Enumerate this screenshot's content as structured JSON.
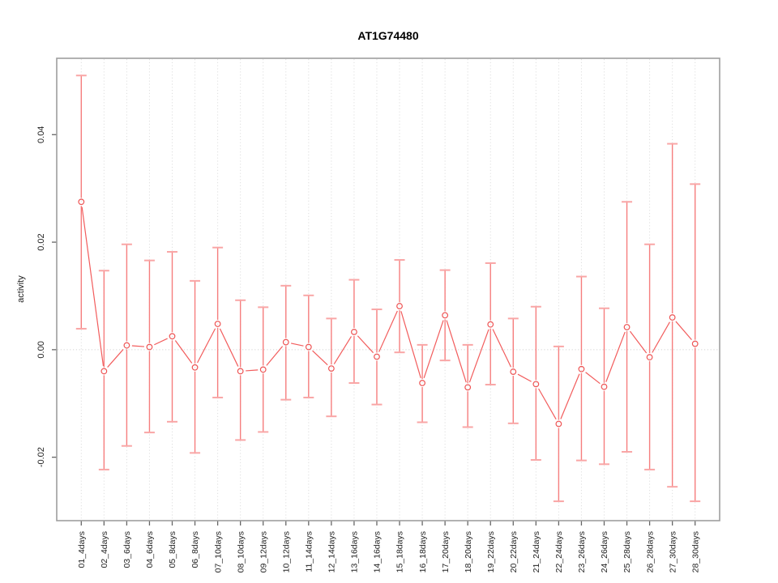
{
  "title": "AT1G74480",
  "chart_data": {
    "type": "scatter",
    "title": "AT1G74480",
    "ylabel": "activity",
    "legend": "none",
    "marker": "open-circle",
    "error_bars": true,
    "grid": "vertical-dotted-per-category, dotted-zero-line, no-horizontal-gridlines",
    "categories": [
      "01_4days",
      "02_4days",
      "03_6days",
      "04_6days",
      "05_8days",
      "06_8days",
      "07_10days",
      "08_10days",
      "09_12days",
      "10_12days",
      "11_14days",
      "12_14days",
      "13_16days",
      "14_16days",
      "15_18days",
      "16_18days",
      "17_20days",
      "18_20days",
      "19_22days",
      "20_22days",
      "21_24days",
      "22_24days",
      "23_26days",
      "24_26days",
      "25_28days",
      "26_28days",
      "27_30days",
      "28_30days"
    ],
    "series": [
      {
        "name": "activity",
        "values": [
          0.0275,
          -0.004,
          0.0008,
          0.0005,
          0.0025,
          -0.0033,
          0.0048,
          -0.004,
          -0.0037,
          0.0014,
          0.0005,
          -0.0035,
          0.0033,
          -0.0013,
          0.0081,
          -0.0062,
          0.0064,
          -0.007,
          0.0047,
          -0.0041,
          -0.0064,
          -0.0138,
          -0.0036,
          -0.0069,
          0.0042,
          -0.0014,
          0.006,
          0.0011
        ],
        "lower": [
          0.0039,
          -0.0223,
          -0.0179,
          -0.0154,
          -0.0134,
          -0.0192,
          -0.0089,
          -0.0168,
          -0.0153,
          -0.0093,
          -0.0089,
          -0.0124,
          -0.0062,
          -0.0102,
          -0.0005,
          -0.0135,
          -0.002,
          -0.0144,
          -0.0065,
          -0.0137,
          -0.0205,
          -0.0282,
          -0.0206,
          -0.0213,
          -0.019,
          -0.0223,
          -0.0255,
          -0.0282
        ],
        "upper": [
          0.051,
          0.0147,
          0.0196,
          0.0166,
          0.0182,
          0.0128,
          0.019,
          0.0092,
          0.0079,
          0.0119,
          0.0101,
          0.0058,
          0.013,
          0.0075,
          0.0167,
          0.0009,
          0.0148,
          0.0009,
          0.0161,
          0.0058,
          0.008,
          0.0006,
          0.0136,
          0.0077,
          0.0275,
          0.0196,
          0.0383,
          0.0308
        ]
      }
    ],
    "ylim": [
      -0.0318,
      0.0542
    ],
    "yticks": [
      -0.02,
      0.0,
      0.02,
      0.04
    ],
    "ytick_labels": [
      "-0.02",
      "0.00",
      "0.02",
      "0.04"
    ],
    "colors": {
      "series_line": "#f25c5c",
      "marker": "#ee5454",
      "error_line": "#f67e7e",
      "error_cap": "#f9a6a6",
      "grid": "#dedede",
      "zero_line": "#d2d2d2",
      "axis_box": "#9e9e9e",
      "tick": "#666666",
      "text": "#222222"
    }
  }
}
